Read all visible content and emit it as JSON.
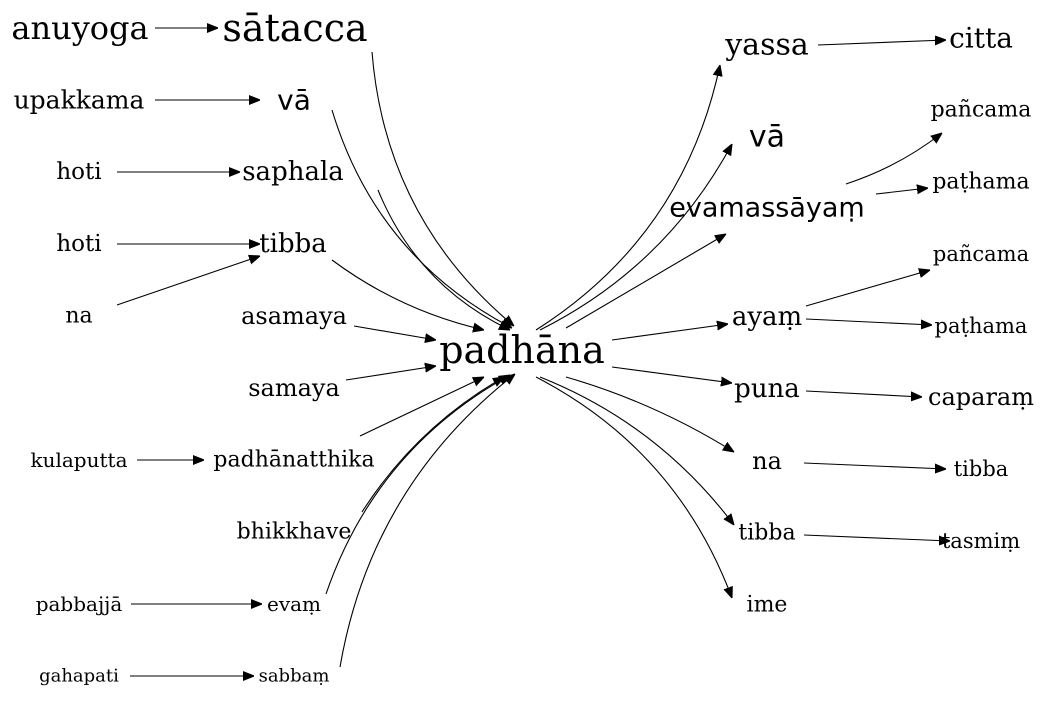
{
  "colors": {
    "background": "#ffffff",
    "ink": "#000000"
  },
  "center": {
    "label": "padhāna"
  },
  "left_chains": [
    {
      "source": "anuyoga",
      "middle": "sātacca"
    },
    {
      "source": "upakkama",
      "middle": "vā"
    },
    {
      "source": "hoti",
      "middle": "saphala"
    },
    {
      "source": "hoti",
      "second_source": "na",
      "middle": "tibba"
    },
    {
      "middle": "asamaya"
    },
    {
      "middle": "samaya"
    },
    {
      "source": "kulaputta",
      "middle": "padhānatthika"
    },
    {
      "middle": "bhikkhave"
    },
    {
      "source": "pabbajjā",
      "middle": "evaṃ"
    },
    {
      "source": "gahapati",
      "middle": "sabbaṃ"
    }
  ],
  "right_chains": [
    {
      "target": "yassa",
      "leaves": [
        "citta"
      ]
    },
    {
      "target": "vā",
      "leaves": []
    },
    {
      "target": "evamassāyaṃ",
      "leaves": [
        "pañcama",
        "paṭhama"
      ]
    },
    {
      "target": "ayaṃ",
      "leaves": [
        "pañcama",
        "paṭhama"
      ]
    },
    {
      "target": "puna",
      "leaves": [
        "caparaṃ"
      ]
    },
    {
      "target": "na",
      "leaves": [
        "tibba"
      ]
    },
    {
      "target": "tibba",
      "leaves": [
        "tasmiṃ"
      ]
    },
    {
      "target": "ime",
      "leaves": []
    }
  ]
}
